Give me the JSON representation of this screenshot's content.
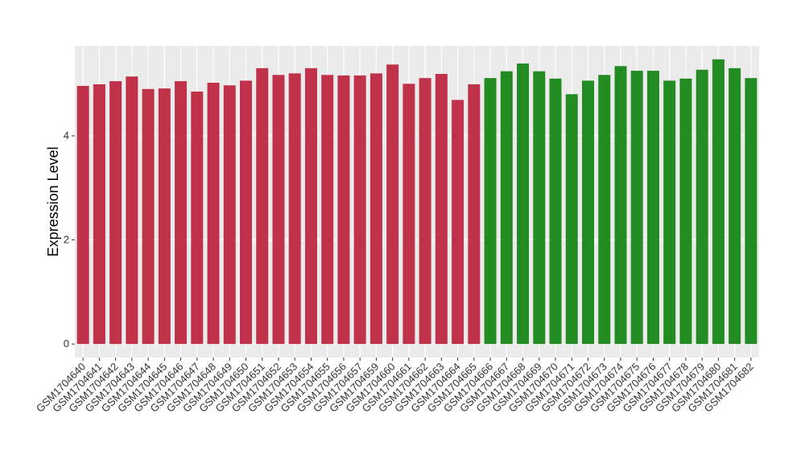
{
  "chart_data": {
    "type": "bar",
    "y_label": "Expression Level",
    "categories": [
      "GSM1704640",
      "GSM1704641",
      "GSM1704642",
      "GSM1704643",
      "GSM1704644",
      "GSM1704645",
      "GSM1704646",
      "GSM1704647",
      "GSM1704648",
      "GSM1704649",
      "GSM1704650",
      "GSM1704651",
      "GSM1704652",
      "GSM1704653",
      "GSM1704654",
      "GSM1704655",
      "GSM1704656",
      "GSM1704657",
      "GSM1704659",
      "GSM1704660",
      "GSM1704661",
      "GSM1704662",
      "GSM1704663",
      "GSM1704664",
      "GSM1704665",
      "GSM1704666",
      "GSM1704667",
      "GSM1704668",
      "GSM1704669",
      "GSM1704670",
      "GSM1704671",
      "GSM1704672",
      "GSM1704673",
      "GSM1704674",
      "GSM1704675",
      "GSM1704676",
      "GSM1704677",
      "GSM1704678",
      "GSM1704679",
      "GSM1704680",
      "GSM1704681",
      "GSM1704682"
    ],
    "values": [
      4.96,
      4.99,
      5.05,
      5.14,
      4.9,
      4.91,
      5.05,
      4.85,
      5.02,
      4.97,
      5.06,
      5.3,
      5.17,
      5.2,
      5.3,
      5.17,
      5.16,
      5.16,
      5.2,
      5.37,
      5.0,
      5.11,
      5.19,
      4.69,
      4.99,
      5.11,
      5.24,
      5.39,
      5.24,
      5.1,
      4.8,
      5.06,
      5.17,
      5.34,
      5.25,
      5.25,
      5.06,
      5.1,
      5.27,
      5.47,
      5.3,
      5.11
    ],
    "colors": [
      "#c0314a",
      "#c0314a",
      "#c0314a",
      "#c0314a",
      "#c0314a",
      "#c0314a",
      "#c0314a",
      "#c0314a",
      "#c0314a",
      "#c0314a",
      "#c0314a",
      "#c0314a",
      "#c0314a",
      "#c0314a",
      "#c0314a",
      "#c0314a",
      "#c0314a",
      "#c0314a",
      "#c0314a",
      "#c0314a",
      "#c0314a",
      "#c0314a",
      "#c0314a",
      "#c0314a",
      "#c0314a",
      "#228b22",
      "#228b22",
      "#228b22",
      "#228b22",
      "#228b22",
      "#228b22",
      "#228b22",
      "#228b22",
      "#228b22",
      "#228b22",
      "#228b22",
      "#228b22",
      "#228b22",
      "#228b22",
      "#228b22",
      "#228b22",
      "#228b22"
    ],
    "ylim": [
      -0.26,
      5.73
    ],
    "yticks": [
      0,
      2,
      4
    ],
    "grid": true
  }
}
